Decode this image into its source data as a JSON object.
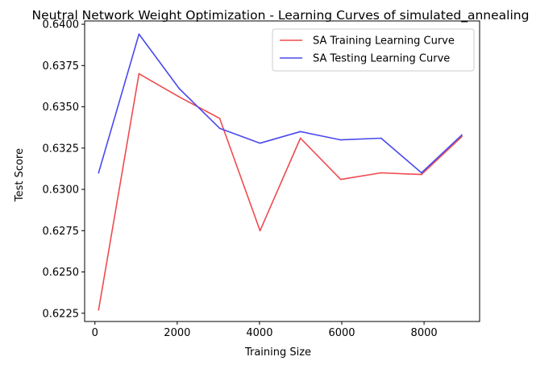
{
  "chart_data": {
    "type": "line",
    "title": "Neutral Network Weight Optimization - Learning Curves of simulated_annealing",
    "xlabel": "Training Size",
    "ylabel": "Test Score",
    "xlim": [
      -250,
      9350
    ],
    "ylim": [
      0.622,
      0.6402
    ],
    "xticks": [
      0,
      2000,
      4000,
      6000,
      8000
    ],
    "yticks": [
      0.6225,
      0.625,
      0.6275,
      0.63,
      0.6325,
      0.635,
      0.6375,
      0.64
    ],
    "ytick_labels": [
      "0.6225",
      "0.6250",
      "0.6275",
      "0.6300",
      "0.6325",
      "0.6350",
      "0.6375",
      "0.6400"
    ],
    "grid": false,
    "legend_position": "top-right",
    "series": [
      {
        "name": "SA Training Learning Curve",
        "color": "#ef4a4f",
        "x": [
          89,
          1070,
          2051,
          3032,
          4013,
          4994,
          5975,
          6956,
          7937,
          8918
        ],
        "y": [
          0.6227,
          0.637,
          0.6356,
          0.6343,
          0.6275,
          0.6331,
          0.6306,
          0.631,
          0.6309,
          0.6332
        ]
      },
      {
        "name": "SA Testing Learning Curve",
        "color": "#4a49ef",
        "x": [
          89,
          1070,
          2051,
          3032,
          4013,
          4994,
          5975,
          6956,
          7937,
          8918
        ],
        "y": [
          0.631,
          0.6394,
          0.6361,
          0.6337,
          0.6328,
          0.6335,
          0.633,
          0.6331,
          0.631,
          0.6333
        ]
      }
    ]
  }
}
